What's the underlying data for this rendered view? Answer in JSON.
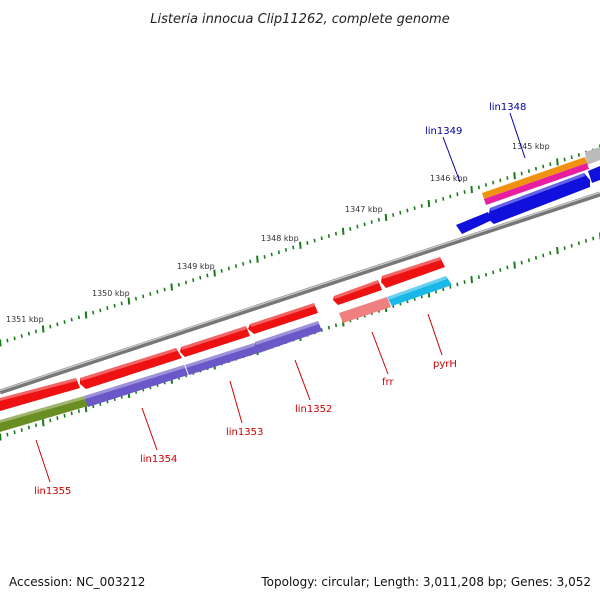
{
  "title": "Listeria innocua Clip11262, complete genome",
  "footer": {
    "accession": "Accession: NC_003212",
    "summary": "Topology: circular; Length: 3,011,208 bp; Genes: 3,052"
  },
  "tick_labels": [
    "1345 kbp",
    "1346 kbp",
    "1347 kbp",
    "1348 kbp",
    "1349 kbp",
    "1350 kbp",
    "1351 kbp"
  ],
  "genes": [
    {
      "name": "lin1348",
      "color": "#0000aa"
    },
    {
      "name": "lin1349",
      "color": "#0000aa"
    },
    {
      "name": "lin1352",
      "color": "#cc0000"
    },
    {
      "name": "lin1353",
      "color": "#cc0000"
    },
    {
      "name": "lin1354",
      "color": "#cc0000"
    },
    {
      "name": "lin1355",
      "color": "#cc0000"
    },
    {
      "name": "frr",
      "color": "#cc0000"
    },
    {
      "name": "pyrH",
      "color": "#cc0000"
    }
  ],
  "colors": {
    "backbone": "#888888",
    "tick": "#1a7a1a",
    "forward_gene": "#ee1111",
    "reverse_gene": "#6a58c8",
    "rna_gene": "#6b8e23",
    "pseudogene": "#f08080",
    "cyan_gene": "#1ab8e8",
    "blue_gene": "#1010dd",
    "orange_gene": "#f0920f",
    "magenta_gene": "#e81ea0"
  }
}
